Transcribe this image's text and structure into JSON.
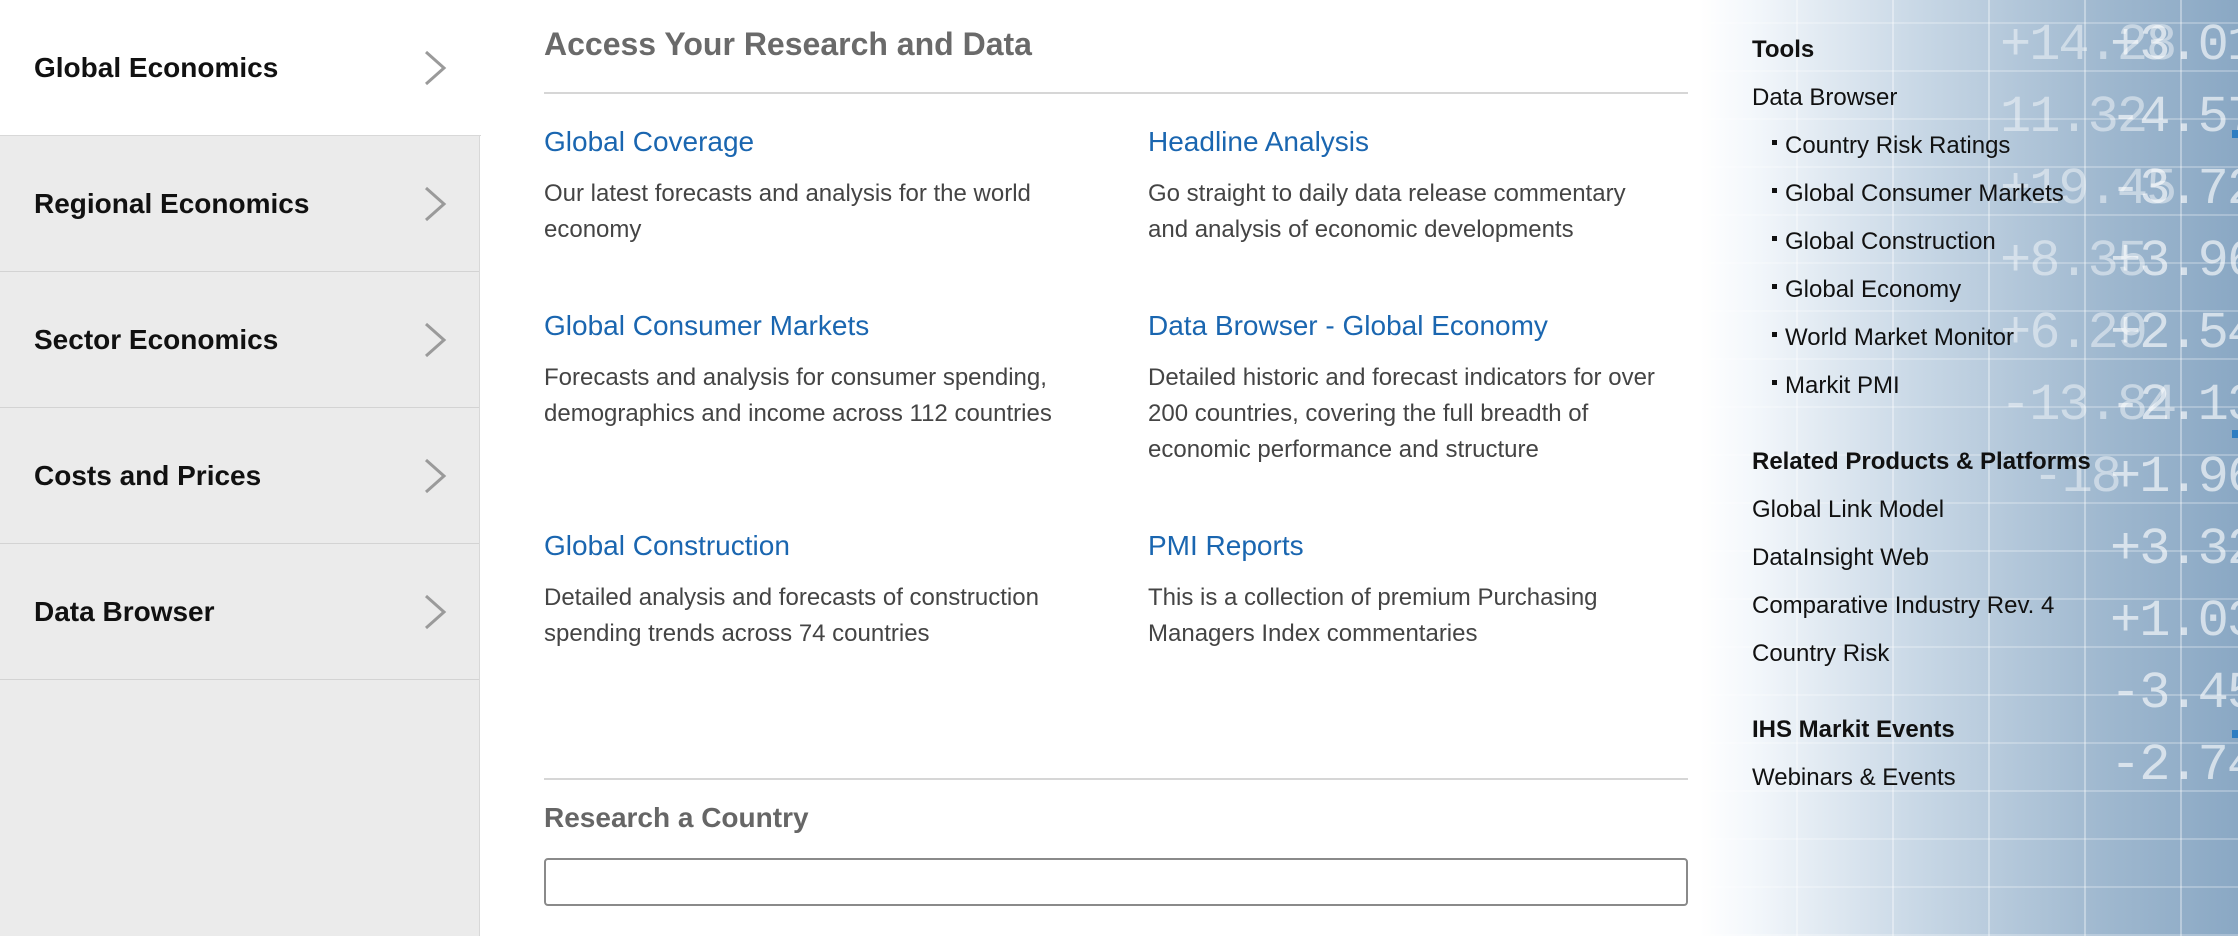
{
  "left_nav": {
    "items": [
      {
        "label": "Global Economics",
        "active": true
      },
      {
        "label": "Regional Economics",
        "active": false
      },
      {
        "label": "Sector Economics",
        "active": false
      },
      {
        "label": "Costs and Prices",
        "active": false
      },
      {
        "label": "Data Browser",
        "active": false
      }
    ]
  },
  "main": {
    "title": "Access Your Research and Data",
    "cards": [
      {
        "link": "Global Coverage",
        "desc": "Our latest forecasts and analysis for the world economy"
      },
      {
        "link": "Headline Analysis",
        "desc": "Go straight to daily data release commentary and analysis of economic developments"
      },
      {
        "link": "Global Consumer Markets",
        "desc": "Forecasts and analysis for consumer spending, demographics and income across 112 countries"
      },
      {
        "link": "Data Browser - Global Economy",
        "desc": "Detailed historic and forecast indicators for over 200 countries, covering the full breadth of economic performance and structure"
      },
      {
        "link": "Global Construction",
        "desc": "Detailed analysis and forecasts of construction spending trends across 74 countries"
      },
      {
        "link": "PMI Reports",
        "desc": "This is a collection of premium Purchasing Managers Index commentaries"
      }
    ],
    "research_country": {
      "title": "Research a Country",
      "input_value": ""
    }
  },
  "right": {
    "tools_heading": "Tools",
    "data_browser_label": "Data Browser",
    "data_browser_items": [
      "Country Risk Ratings",
      "Global Consumer Markets",
      "Global Construction",
      "Global Economy",
      "World Market Monitor",
      "Markit PMI"
    ],
    "related_heading": "Related Products & Platforms",
    "related_items": [
      "Global Link Model",
      "DataInsight Web",
      "Comparative Industry Rev. 4",
      "Country Risk"
    ],
    "events_heading": "IHS Markit Events",
    "events_items": [
      "Webinars & Events"
    ]
  },
  "background": {
    "ticker_col1": [
      "",
      "",
      "",
      "",
      "",
      "",
      "",
      "",
      "",
      "",
      "",
      "",
      ""
    ],
    "ticker_col2": [
      "+3.01",
      "-4.57",
      "-3.72",
      "+3.96",
      "+2.54",
      "-2.13",
      "+1.96",
      "+3.32",
      "+1.03",
      "-3.45",
      "-2.74"
    ],
    "ticker_col1_vals": [
      "",
      "",
      "",
      "",
      "+14.28",
      "11.32",
      "+19.45",
      "+8.35",
      "+6.29",
      "-13.84",
      "-18"
    ]
  },
  "colors": {
    "link_blue": "#1a66b0",
    "nav_bg": "#ebebeb",
    "nav_active_bg": "#ffffff"
  }
}
